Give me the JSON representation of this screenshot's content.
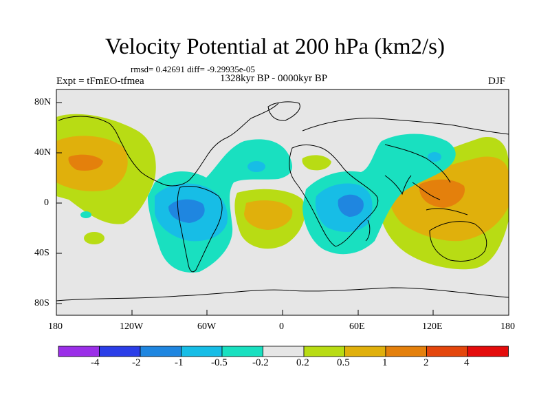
{
  "title": "Velocity Potential at 200 hPa (km2/s)",
  "stats": "rmsd= 0.42691 diff= -9.29935e-05",
  "experiment": "Expt = tFmEO-tfmea",
  "period": "1328kyr BP - 0000kyr BP",
  "season": "DJF",
  "lat_labels": [
    "80N",
    "40N",
    "0",
    "40S",
    "80S"
  ],
  "lon_labels": [
    "180",
    "120W",
    "60W",
    "0",
    "60E",
    "120E",
    "180"
  ],
  "colorbar": {
    "labels": [
      "-4",
      "-2",
      "-1",
      "-0.5",
      "-0.2",
      "0.2",
      "0.5",
      "1",
      "2",
      "4"
    ],
    "colors": [
      "#9b2fe8",
      "#2b3ee8",
      "#1f86e0",
      "#17bde6",
      "#19e0c0",
      "#e6e6e6",
      "#b8dc14",
      "#e0b00c",
      "#e4800c",
      "#e4460c",
      "#e40c0c"
    ]
  },
  "colors": {
    "land_outline": "#000000",
    "neutral": "#e6e6e6"
  }
}
